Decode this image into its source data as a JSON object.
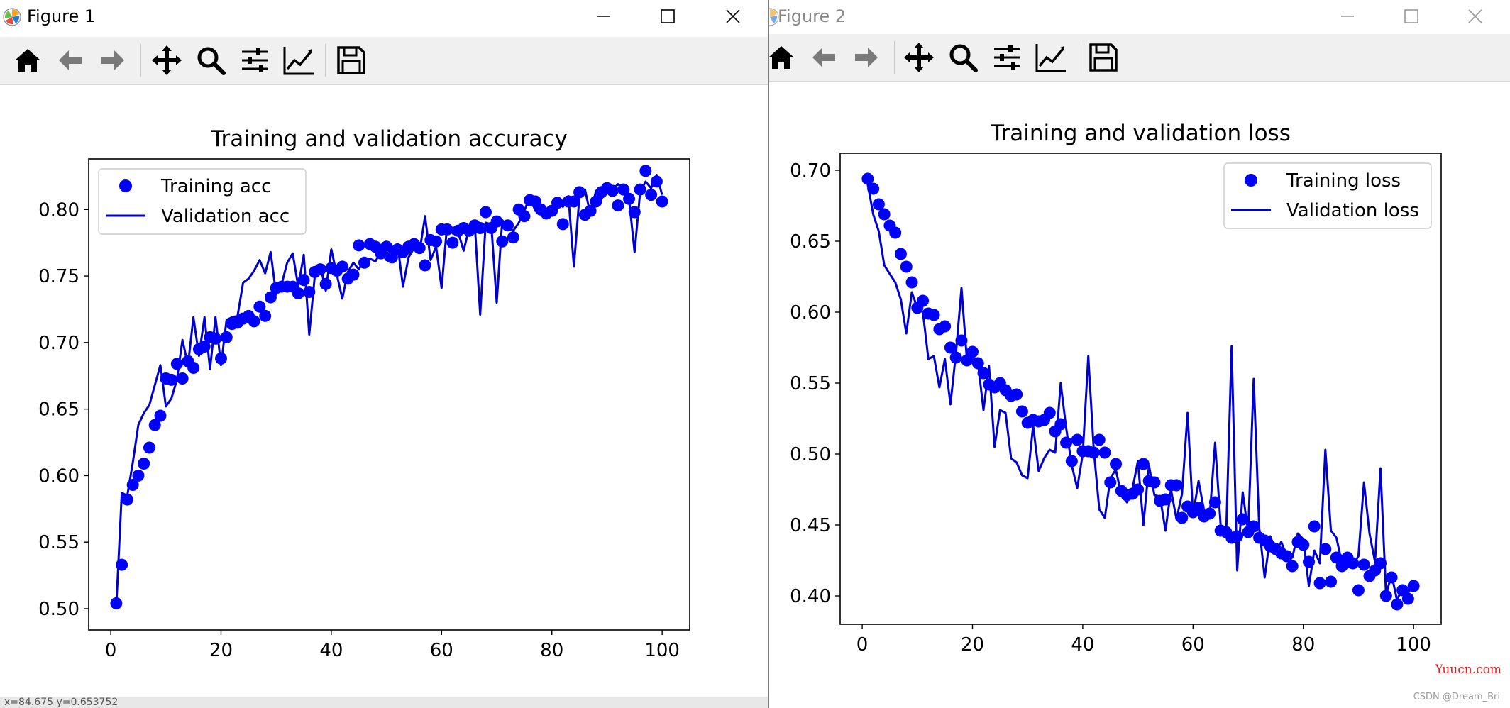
{
  "figure1": {
    "title": "Figure 1",
    "chart_data": {
      "type": "line",
      "title": "Training and validation accuracy",
      "xlabel": "",
      "ylabel": "",
      "xlim": [
        -4,
        105
      ],
      "ylim": [
        0.484,
        0.838
      ],
      "xticks": [
        0,
        20,
        40,
        60,
        80,
        100
      ],
      "yticks": [
        0.5,
        0.55,
        0.6,
        0.65,
        0.7,
        0.75,
        0.8
      ],
      "ytick_labels": [
        "0.50",
        "0.55",
        "0.60",
        "0.65",
        "0.70",
        "0.75",
        "0.80"
      ],
      "legend_position": "upper-left",
      "grid": false,
      "series": [
        {
          "name": "Training acc",
          "style": "points",
          "color": "#0000ff",
          "x": [
            1,
            2,
            3,
            4,
            5,
            6,
            7,
            8,
            9,
            10,
            11,
            12,
            13,
            14,
            15,
            16,
            17,
            18,
            19,
            20,
            21,
            22,
            23,
            24,
            25,
            26,
            27,
            28,
            29,
            30,
            31,
            32,
            33,
            34,
            35,
            36,
            37,
            38,
            39,
            40,
            41,
            42,
            43,
            44,
            45,
            46,
            47,
            48,
            49,
            50,
            51,
            52,
            53,
            54,
            55,
            56,
            57,
            58,
            59,
            60,
            61,
            62,
            63,
            64,
            65,
            66,
            67,
            68,
            69,
            70,
            71,
            72,
            73,
            74,
            75,
            76,
            77,
            78,
            79,
            80,
            81,
            82,
            83,
            84,
            85,
            86,
            87,
            88,
            89,
            90,
            91,
            92,
            93,
            94,
            95,
            96,
            97,
            98,
            99,
            100
          ],
          "y": [
            0.504,
            0.533,
            0.582,
            0.593,
            0.6,
            0.609,
            0.621,
            0.638,
            0.645,
            0.673,
            0.672,
            0.684,
            0.673,
            0.686,
            0.681,
            0.695,
            0.697,
            0.704,
            0.703,
            0.688,
            0.704,
            0.714,
            0.715,
            0.718,
            0.72,
            0.716,
            0.727,
            0.72,
            0.734,
            0.741,
            0.742,
            0.742,
            0.742,
            0.737,
            0.747,
            0.738,
            0.753,
            0.755,
            0.744,
            0.756,
            0.754,
            0.757,
            0.748,
            0.751,
            0.773,
            0.76,
            0.774,
            0.772,
            0.767,
            0.772,
            0.764,
            0.77,
            0.768,
            0.772,
            0.774,
            0.771,
            0.758,
            0.777,
            0.776,
            0.785,
            0.785,
            0.775,
            0.784,
            0.786,
            0.784,
            0.788,
            0.786,
            0.798,
            0.786,
            0.791,
            0.776,
            0.788,
            0.779,
            0.8,
            0.795,
            0.807,
            0.806,
            0.8,
            0.797,
            0.799,
            0.805,
            0.789,
            0.806,
            0.806,
            0.813,
            0.796,
            0.799,
            0.806,
            0.813,
            0.816,
            0.814,
            0.803,
            0.815,
            0.808,
            0.798,
            0.815,
            0.829,
            0.811,
            0.821,
            0.806
          ]
        },
        {
          "name": "Validation acc",
          "style": "line",
          "color": "#0000cc",
          "x": [
            1,
            2,
            3,
            4,
            5,
            6,
            7,
            8,
            9,
            10,
            11,
            12,
            13,
            14,
            15,
            16,
            17,
            18,
            19,
            20,
            21,
            22,
            23,
            24,
            25,
            26,
            27,
            28,
            29,
            30,
            31,
            32,
            33,
            34,
            35,
            36,
            37,
            38,
            39,
            40,
            41,
            42,
            43,
            44,
            45,
            46,
            47,
            48,
            49,
            50,
            51,
            52,
            53,
            54,
            55,
            56,
            57,
            58,
            59,
            60,
            61,
            62,
            63,
            64,
            65,
            66,
            67,
            68,
            69,
            70,
            71,
            72,
            73,
            74,
            75,
            76,
            77,
            78,
            79,
            80,
            81,
            82,
            83,
            84,
            85,
            86,
            87,
            88,
            89,
            90,
            91,
            92,
            93,
            94,
            95,
            96,
            97,
            98,
            99,
            100
          ],
          "y": [
            0.502,
            0.587,
            0.585,
            0.61,
            0.638,
            0.647,
            0.653,
            0.668,
            0.683,
            0.652,
            0.658,
            0.672,
            0.702,
            0.683,
            0.719,
            0.69,
            0.719,
            0.68,
            0.719,
            0.683,
            0.717,
            0.719,
            0.72,
            0.745,
            0.748,
            0.754,
            0.762,
            0.752,
            0.768,
            0.736,
            0.744,
            0.76,
            0.767,
            0.742,
            0.766,
            0.706,
            0.75,
            0.758,
            0.739,
            0.77,
            0.751,
            0.733,
            0.753,
            0.76,
            0.755,
            0.763,
            0.763,
            0.761,
            0.768,
            0.762,
            0.771,
            0.774,
            0.742,
            0.764,
            0.771,
            0.768,
            0.795,
            0.762,
            0.772,
            0.741,
            0.788,
            0.782,
            0.783,
            0.769,
            0.786,
            0.791,
            0.721,
            0.79,
            0.789,
            0.73,
            0.792,
            0.787,
            0.784,
            0.79,
            0.799,
            0.81,
            0.799,
            0.801,
            0.796,
            0.796,
            0.807,
            0.802,
            0.81,
            0.757,
            0.81,
            0.815,
            0.796,
            0.814,
            0.808,
            0.815,
            0.815,
            0.819,
            0.815,
            0.808,
            0.768,
            0.813,
            0.821,
            0.816,
            0.826,
            0.811
          ]
        }
      ]
    }
  },
  "figure2": {
    "title": "Figure 2",
    "chart_data": {
      "type": "line",
      "title": "Training and validation loss",
      "xlabel": "",
      "ylabel": "",
      "xlim": [
        -4,
        105
      ],
      "ylim": [
        0.38,
        0.712
      ],
      "xticks": [
        0,
        20,
        40,
        60,
        80,
        100
      ],
      "yticks": [
        0.4,
        0.45,
        0.5,
        0.55,
        0.6,
        0.65,
        0.7
      ],
      "ytick_labels": [
        "0.40",
        "0.45",
        "0.50",
        "0.55",
        "0.60",
        "0.65",
        "0.70"
      ],
      "legend_position": "upper-right",
      "grid": false,
      "series": [
        {
          "name": "Training loss",
          "style": "points",
          "color": "#0000ff",
          "x": [
            1,
            2,
            3,
            4,
            5,
            6,
            7,
            8,
            9,
            10,
            11,
            12,
            13,
            14,
            15,
            16,
            17,
            18,
            19,
            20,
            21,
            22,
            23,
            24,
            25,
            26,
            27,
            28,
            29,
            30,
            31,
            32,
            33,
            34,
            35,
            36,
            37,
            38,
            39,
            40,
            41,
            42,
            43,
            44,
            45,
            46,
            47,
            48,
            49,
            50,
            51,
            52,
            53,
            54,
            55,
            56,
            57,
            58,
            59,
            60,
            61,
            62,
            63,
            64,
            65,
            66,
            67,
            68,
            69,
            70,
            71,
            72,
            73,
            74,
            75,
            76,
            77,
            78,
            79,
            80,
            81,
            82,
            83,
            84,
            85,
            86,
            87,
            88,
            89,
            90,
            91,
            92,
            93,
            94,
            95,
            96,
            97,
            98,
            99,
            100
          ],
          "y": [
            0.694,
            0.687,
            0.676,
            0.669,
            0.661,
            0.656,
            0.641,
            0.632,
            0.621,
            0.603,
            0.608,
            0.599,
            0.598,
            0.588,
            0.59,
            0.575,
            0.568,
            0.58,
            0.566,
            0.572,
            0.564,
            0.557,
            0.549,
            0.547,
            0.55,
            0.545,
            0.541,
            0.542,
            0.53,
            0.522,
            0.524,
            0.523,
            0.524,
            0.529,
            0.516,
            0.521,
            0.508,
            0.495,
            0.51,
            0.502,
            0.502,
            0.501,
            0.51,
            0.501,
            0.48,
            0.493,
            0.474,
            0.471,
            0.472,
            0.475,
            0.493,
            0.481,
            0.48,
            0.467,
            0.468,
            0.478,
            0.478,
            0.455,
            0.463,
            0.459,
            0.462,
            0.456,
            0.458,
            0.466,
            0.446,
            0.445,
            0.441,
            0.442,
            0.454,
            0.445,
            0.449,
            0.441,
            0.439,
            0.435,
            0.433,
            0.43,
            0.428,
            0.421,
            0.438,
            0.436,
            0.424,
            0.449,
            0.409,
            0.433,
            0.41,
            0.427,
            0.421,
            0.427,
            0.423,
            0.404,
            0.422,
            0.414,
            0.418,
            0.423,
            0.4,
            0.413,
            0.394,
            0.404,
            0.398,
            0.407
          ]
        },
        {
          "name": "Validation loss",
          "style": "line",
          "color": "#0000cc",
          "x": [
            1,
            2,
            3,
            4,
            5,
            6,
            7,
            8,
            9,
            10,
            11,
            12,
            13,
            14,
            15,
            16,
            17,
            18,
            19,
            20,
            21,
            22,
            23,
            24,
            25,
            26,
            27,
            28,
            29,
            30,
            31,
            32,
            33,
            34,
            35,
            36,
            37,
            38,
            39,
            40,
            41,
            42,
            43,
            44,
            45,
            46,
            47,
            48,
            49,
            50,
            51,
            52,
            53,
            54,
            55,
            56,
            57,
            58,
            59,
            60,
            61,
            62,
            63,
            64,
            65,
            66,
            67,
            68,
            69,
            70,
            71,
            72,
            73,
            74,
            75,
            76,
            77,
            78,
            79,
            80,
            81,
            82,
            83,
            84,
            85,
            86,
            87,
            88,
            89,
            90,
            91,
            92,
            93,
            94,
            95,
            96,
            97,
            98,
            99,
            100
          ],
          "y": [
            0.69,
            0.669,
            0.657,
            0.633,
            0.627,
            0.621,
            0.609,
            0.585,
            0.614,
            0.603,
            0.6,
            0.567,
            0.569,
            0.547,
            0.567,
            0.535,
            0.571,
            0.617,
            0.566,
            0.568,
            0.564,
            0.531,
            0.562,
            0.505,
            0.531,
            0.529,
            0.497,
            0.494,
            0.485,
            0.483,
            0.52,
            0.488,
            0.497,
            0.503,
            0.501,
            0.55,
            0.518,
            0.492,
            0.476,
            0.5,
            0.569,
            0.503,
            0.461,
            0.455,
            0.483,
            0.489,
            0.471,
            0.466,
            0.475,
            0.495,
            0.45,
            0.492,
            0.471,
            0.47,
            0.446,
            0.475,
            0.454,
            0.472,
            0.529,
            0.457,
            0.481,
            0.46,
            0.455,
            0.508,
            0.45,
            0.442,
            0.576,
            0.418,
            0.473,
            0.445,
            0.553,
            0.448,
            0.413,
            0.442,
            0.432,
            0.438,
            0.428,
            0.427,
            0.444,
            0.44,
            0.407,
            0.432,
            0.423,
            0.503,
            0.446,
            0.441,
            0.423,
            0.42,
            0.422,
            0.428,
            0.48,
            0.444,
            0.424,
            0.49,
            0.401,
            0.415,
            0.397,
            0.406,
            0.402,
            0.408
          ]
        }
      ]
    }
  },
  "window_controls": {
    "minimize": "minimize-icon",
    "maximize": "maximize-icon",
    "close": "close-icon"
  },
  "toolbar_icons": [
    "home-icon",
    "back-icon",
    "forward-icon",
    "pan-icon",
    "zoom-icon",
    "configure-subplots-icon",
    "edit-axis-icon",
    "save-icon"
  ],
  "status": {
    "text": "x=84.675    y=0.653752"
  },
  "watermark": {
    "site": "Yuucn.com",
    "author": "CSDN @Dream_Bri"
  }
}
